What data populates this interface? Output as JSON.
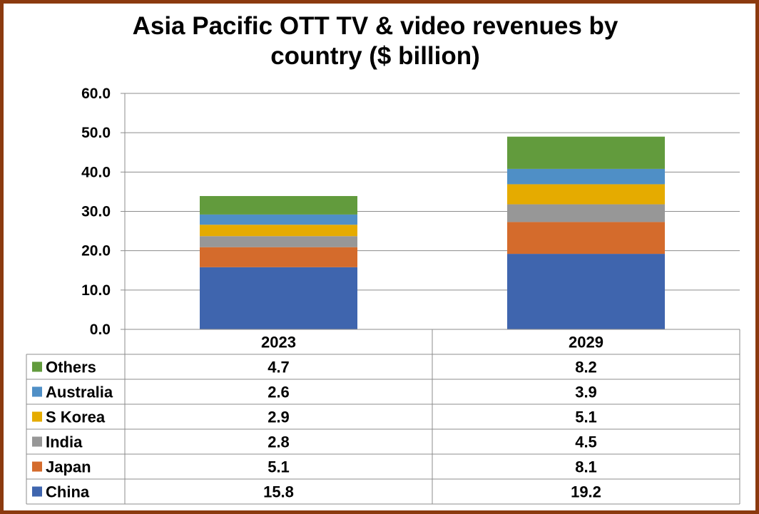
{
  "chart_data": {
    "type": "bar",
    "stacked": true,
    "title_lines": [
      "Asia Pacific OTT TV & video revenues by",
      "country ($ billion)"
    ],
    "categories": [
      "2023",
      "2029"
    ],
    "series": [
      {
        "name": "China",
        "color": "#3F65AE",
        "values": [
          15.8,
          19.2
        ],
        "labels": [
          "15.8",
          "19.2"
        ]
      },
      {
        "name": "Japan",
        "color": "#D46B2C",
        "values": [
          5.1,
          8.1
        ],
        "labels": [
          "5.1",
          "8.1"
        ]
      },
      {
        "name": "India",
        "color": "#979797",
        "values": [
          2.8,
          4.5
        ],
        "labels": [
          "2.8",
          "4.5"
        ]
      },
      {
        "name": "S Korea",
        "color": "#E5AB00",
        "values": [
          2.9,
          5.1
        ],
        "labels": [
          "2.9",
          "5.1"
        ]
      },
      {
        "name": "Australia",
        "color": "#4F8FC6",
        "values": [
          2.6,
          3.9
        ],
        "labels": [
          "2.6",
          "3.9"
        ]
      },
      {
        "name": "Others",
        "color": "#629B3D",
        "values": [
          4.7,
          8.2
        ],
        "labels": [
          "4.7",
          "8.2"
        ]
      }
    ],
    "ylim": [
      0,
      60
    ],
    "yticks": [
      "0.0",
      "10.0",
      "20.0",
      "30.0",
      "40.0",
      "50.0",
      "60.0"
    ],
    "grid": true,
    "legend": "data-table"
  }
}
